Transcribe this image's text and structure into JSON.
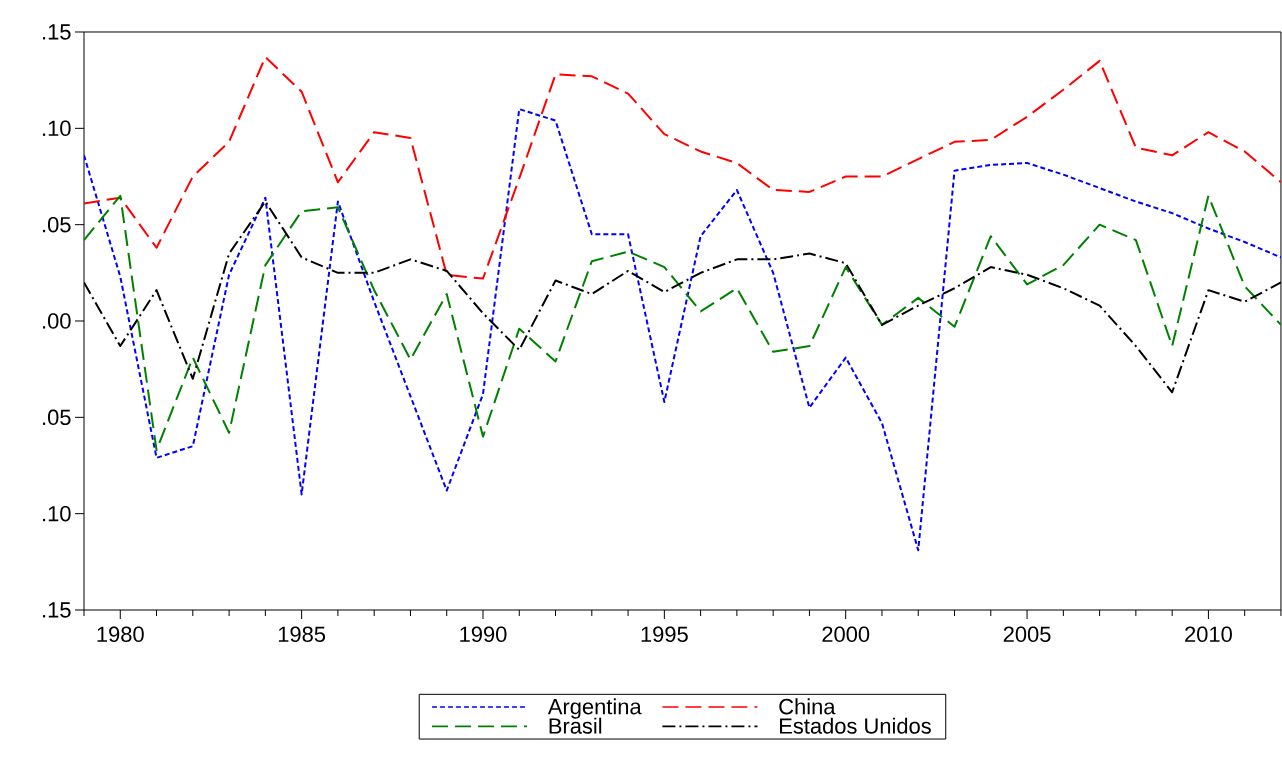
{
  "chart_data": {
    "type": "line",
    "x": [
      1979,
      1980,
      1981,
      1982,
      1983,
      1984,
      1985,
      1986,
      1987,
      1988,
      1989,
      1990,
      1991,
      1992,
      1993,
      1994,
      1995,
      1996,
      1997,
      1998,
      1999,
      2000,
      2001,
      2002,
      2003,
      2004,
      2005,
      2006,
      2007,
      2008,
      2009,
      2010,
      2011,
      2012
    ],
    "series": [
      {
        "name": "Argentina",
        "color": "#0000ff",
        "line_style": "dotted",
        "values": [
          0.086,
          0.023,
          -0.071,
          -0.065,
          0.024,
          0.064,
          -0.09,
          0.062,
          0.01,
          -0.039,
          -0.088,
          -0.038,
          0.11,
          0.104,
          0.045,
          0.045,
          -0.042,
          0.044,
          0.068,
          0.025,
          -0.045,
          -0.019,
          -0.053,
          -0.119,
          0.078,
          0.081,
          0.082,
          0.076,
          0.069,
          0.062,
          0.056,
          0.048,
          0.041,
          0.033
        ]
      },
      {
        "name": "China",
        "color": "#ff0000",
        "line_style": "dashed",
        "values": [
          0.061,
          0.064,
          0.038,
          0.075,
          0.093,
          0.137,
          0.119,
          0.072,
          0.098,
          0.095,
          0.024,
          0.022,
          0.074,
          0.128,
          0.127,
          0.118,
          0.097,
          0.088,
          0.082,
          0.068,
          0.067,
          0.075,
          0.075,
          0.084,
          0.093,
          0.094,
          0.106,
          0.12,
          0.135,
          0.09,
          0.086,
          0.098,
          0.088,
          0.072
        ]
      },
      {
        "name": "Brasil",
        "color": "#008000",
        "line_style": "dashed",
        "values": [
          0.042,
          0.065,
          -0.067,
          -0.019,
          -0.058,
          0.029,
          0.057,
          0.059,
          0.016,
          -0.02,
          0.014,
          -0.06,
          -0.004,
          -0.021,
          0.031,
          0.036,
          0.028,
          0.005,
          0.017,
          -0.016,
          -0.013,
          0.028,
          -0.002,
          0.012,
          -0.003,
          0.044,
          0.019,
          0.029,
          0.05,
          0.042,
          -0.013,
          0.065,
          0.018,
          -0.002
        ]
      },
      {
        "name": "Estados Unidos",
        "color": "#000000",
        "line_style": "dashdot",
        "values": [
          0.02,
          -0.013,
          0.016,
          -0.03,
          0.035,
          0.062,
          0.033,
          0.025,
          0.025,
          0.032,
          0.026,
          0.004,
          -0.015,
          0.021,
          0.014,
          0.026,
          0.015,
          0.025,
          0.032,
          0.032,
          0.035,
          0.03,
          -0.002,
          0.008,
          0.017,
          0.028,
          0.024,
          0.017,
          0.008,
          -0.013,
          -0.037,
          0.016,
          0.01,
          0.02
        ]
      }
    ],
    "xlim": [
      1979,
      2012
    ],
    "xticks": [
      {
        "value": 1979,
        "label": null
      },
      1980,
      {
        "value": 1981,
        "label": null
      },
      {
        "value": 1982,
        "label": null
      },
      {
        "value": 1983,
        "label": null
      },
      {
        "value": 1984,
        "label": null
      },
      1985,
      {
        "value": 1986,
        "label": null
      },
      {
        "value": 1987,
        "label": null
      },
      {
        "value": 1988,
        "label": null
      },
      {
        "value": 1989,
        "label": null
      },
      1990,
      {
        "value": 1991,
        "label": null
      },
      {
        "value": 1992,
        "label": null
      },
      {
        "value": 1993,
        "label": null
      },
      {
        "value": 1994,
        "label": null
      },
      1995,
      {
        "value": 1996,
        "label": null
      },
      {
        "value": 1997,
        "label": null
      },
      {
        "value": 1998,
        "label": null
      },
      {
        "value": 1999,
        "label": null
      },
      2000,
      {
        "value": 2001,
        "label": null
      },
      {
        "value": 2002,
        "label": null
      },
      {
        "value": 2003,
        "label": null
      },
      {
        "value": 2004,
        "label": null
      },
      2005,
      {
        "value": 2006,
        "label": null
      },
      {
        "value": 2007,
        "label": null
      },
      {
        "value": 2008,
        "label": null
      },
      {
        "value": 2009,
        "label": null
      },
      2010,
      {
        "value": 2011,
        "label": null
      },
      {
        "value": 2012,
        "label": null
      }
    ],
    "ylim": [
      -0.15,
      0.15
    ],
    "yticks": [
      {
        "value": -0.15,
        "label": ".15"
      },
      {
        "value": -0.1,
        "label": ".10"
      },
      {
        "value": -0.05,
        "label": ".05"
      },
      {
        "value": 0.0,
        "label": ".00"
      },
      {
        "value": 0.05,
        "label": ".05"
      },
      {
        "value": 0.1,
        "label": ".10"
      },
      {
        "value": 0.15,
        "label": ".15"
      }
    ],
    "grid": false,
    "legend": "bottom"
  }
}
